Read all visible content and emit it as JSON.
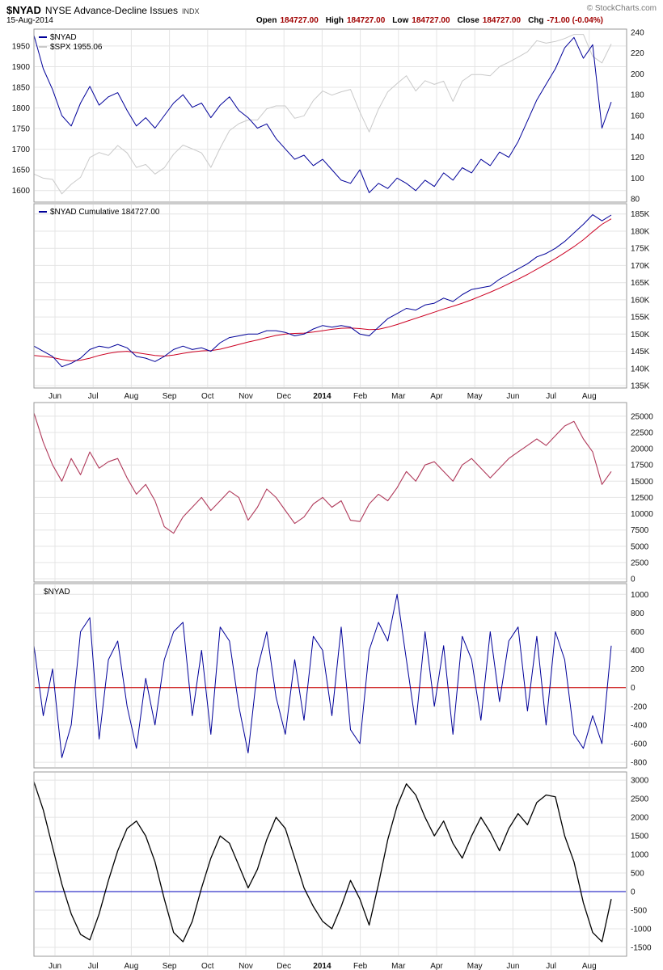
{
  "header": {
    "symbol": "$NYAD",
    "name": "NYSE Advance-Decline Issues",
    "exchange": "INDX",
    "date": "15-Aug-2014",
    "credit": "© StockCharts.com",
    "quote": [
      {
        "label": "Open",
        "value": "184727.00"
      },
      {
        "label": "High",
        "value": "184727.00"
      },
      {
        "label": "Low",
        "value": "184727.00"
      },
      {
        "label": "Close",
        "value": "184727.00"
      },
      {
        "label": "Chg",
        "value": "-71.00 (-0.04%)"
      }
    ]
  },
  "chart_data": {
    "type": "line",
    "title": "$NYAD NYSE Advance-Decline Issues INDX",
    "x_axis": {
      "months": [
        "Jun",
        "Jul",
        "Aug",
        "Sep",
        "Oct",
        "Nov",
        "Dec",
        "2014",
        "Feb",
        "Mar",
        "Apr",
        "May",
        "Jun",
        "Jul",
        "Aug"
      ],
      "start": "Jun-2013",
      "end": "15-Aug-2014",
      "sampling": "weekly"
    },
    "panels": [
      {
        "name": "nyad-spx-overlay",
        "legend": [
          {
            "label": "$NYAD",
            "color": "#000099"
          },
          {
            "label": "$SPX 1955.06",
            "color": "#c9c9c9"
          }
        ],
        "left_axis": {
          "min": 1572,
          "max": 1991,
          "grid": true,
          "ticks": [
            [
              1950,
              "1950"
            ],
            [
              1900,
              "1900"
            ],
            [
              1850,
              "1850"
            ],
            [
              1800,
              "1800"
            ],
            [
              1750,
              "1750"
            ],
            [
              1700,
              "1700"
            ],
            [
              1650,
              "1650"
            ],
            [
              1600,
              "1600"
            ]
          ]
        },
        "right_axis": {
          "min": 77,
          "max": 243,
          "ticks": [
            [
              240,
              "240"
            ],
            [
              220,
              "220"
            ],
            [
              200,
              "200"
            ],
            [
              180,
              "180"
            ],
            [
              160,
              "160"
            ],
            [
              140,
              "140"
            ],
            [
              120,
              "120"
            ],
            [
              100,
              "100"
            ],
            [
              80,
              "80"
            ]
          ]
        },
        "series": [
          {
            "name": "$SPX",
            "axis": "left",
            "color": "#c9c9c9",
            "width": 1,
            "values": [
              1640,
              1630,
              1627,
              1592,
              1615,
              1632,
              1680,
              1692,
              1685,
              1709,
              1691,
              1656,
              1663,
              1640,
              1655,
              1688,
              1710,
              1701,
              1691,
              1656,
              1703,
              1745,
              1762,
              1771,
              1771,
              1798,
              1805,
              1805,
              1775,
              1781,
              1818,
              1841,
              1831,
              1839,
              1845,
              1790,
              1742,
              1797,
              1839,
              1859,
              1878,
              1841,
              1866,
              1857,
              1865,
              1816,
              1865,
              1881,
              1881,
              1878,
              1900,
              1911,
              1923,
              1936,
              1963,
              1957,
              1961,
              1968,
              1978,
              1978,
              1925,
              1909,
              1955
            ]
          },
          {
            "name": "$NYAD",
            "axis": "right",
            "color": "#000099",
            "width": 1,
            "values": [
              237,
              205,
              185,
              160,
              150,
              172,
              188,
              170,
              178,
              182,
              165,
              150,
              158,
              148,
              160,
              172,
              180,
              168,
              172,
              158,
              170,
              178,
              165,
              158,
              148,
              152,
              138,
              128,
              118,
              122,
              112,
              118,
              108,
              98,
              95,
              108,
              86,
              95,
              90,
              100,
              95,
              88,
              98,
              92,
              105,
              98,
              110,
              105,
              118,
              112,
              125,
              120,
              135,
              155,
              175,
              190,
              205,
              225,
              235,
              215,
              228,
              148,
              173
            ]
          }
        ]
      },
      {
        "name": "nyad-cumulative",
        "legend": [
          {
            "label": "$NYAD Cumulative 184727.00",
            "color": "#000099"
          }
        ],
        "left_axis": null,
        "right_axis": {
          "min": 134.3,
          "max": 188,
          "ticks": [
            [
              185,
              "185K"
            ],
            [
              180,
              "180K"
            ],
            [
              175,
              "175K"
            ],
            [
              170,
              "170K"
            ],
            [
              165,
              "165K"
            ],
            [
              160,
              "160K"
            ],
            [
              155,
              "155K"
            ],
            [
              150,
              "150K"
            ],
            [
              145,
              "145K"
            ],
            [
              140,
              "140K"
            ],
            [
              135,
              "135K"
            ]
          ]
        },
        "series": [
          {
            "name": "cumulative-ma",
            "axis": "right",
            "color": "#cc0022",
            "width": 1,
            "values": [
              143.8,
              143.5,
              143.2,
              142.6,
              142.2,
              142.4,
              143,
              143.8,
              144.4,
              144.8,
              145,
              144.6,
              144.2,
              143.8,
              143.6,
              143.9,
              144.4,
              144.8,
              145.1,
              145.2,
              145.6,
              146.3,
              147,
              147.7,
              148.3,
              149,
              149.6,
              150,
              150.2,
              150.3,
              150.6,
              151,
              151.4,
              151.7,
              151.8,
              151.6,
              151.3,
              151.4,
              152,
              152.8,
              153.7,
              154.6,
              155.5,
              156.4,
              157.3,
              158.1,
              159,
              160,
              161.1,
              162.2,
              163.4,
              164.7,
              166,
              167.4,
              168.9,
              170.4,
              172,
              173.7,
              175.5,
              177.5,
              179.8,
              182,
              183.6
            ]
          },
          {
            "name": "cumulative",
            "axis": "right",
            "color": "#000099",
            "width": 1,
            "values": [
              146.5,
              145,
              143.5,
              140.5,
              141.5,
              143,
              145.5,
              146.5,
              146,
              147,
              146,
              143.5,
              143,
              142,
              143.5,
              145.5,
              146.5,
              145.5,
              146,
              145,
              147.5,
              149,
              149.5,
              150,
              150,
              151,
              151,
              150.5,
              149.5,
              150,
              151.5,
              152.5,
              152,
              152.5,
              152,
              150,
              149.5,
              152,
              154.5,
              156,
              157.5,
              157,
              158.5,
              159,
              160.5,
              159.5,
              161.5,
              163,
              163.5,
              164,
              166,
              167.5,
              169,
              170.5,
              172.5,
              173.5,
              175,
              177,
              179.5,
              182,
              184.8,
              183,
              184.7
            ]
          }
        ]
      },
      {
        "name": "breadth",
        "legend": null,
        "left_axis": null,
        "right_axis": {
          "min": -500,
          "max": 27100,
          "ticks": [
            [
              25000,
              "25000"
            ],
            [
              22500,
              "22500"
            ],
            [
              20000,
              "20000"
            ],
            [
              17500,
              "17500"
            ],
            [
              15000,
              "15000"
            ],
            [
              12500,
              "12500"
            ],
            [
              10000,
              "10000"
            ],
            [
              7500,
              "7500"
            ],
            [
              5000,
              "5000"
            ],
            [
              2500,
              "2500"
            ],
            [
              0,
              "0"
            ]
          ]
        },
        "series": [
          {
            "name": "breadth-line",
            "axis": "right",
            "color": "#b03a5b",
            "width": 1.1,
            "values": [
              25500,
              21000,
              17500,
              15000,
              18500,
              16000,
              19500,
              17000,
              18000,
              18500,
              15500,
              13000,
              14500,
              12000,
              8000,
              7000,
              9500,
              11000,
              12500,
              10500,
              12000,
              13500,
              12500,
              9000,
              11000,
              13800,
              12500,
              10500,
              8500,
              9500,
              11500,
              12500,
              11000,
              12000,
              9000,
              8800,
              11500,
              13000,
              12000,
              14000,
              16500,
              15000,
              17500,
              18000,
              16500,
              15000,
              17500,
              18500,
              17000,
              15500,
              17000,
              18500,
              19500,
              20500,
              21500,
              20500,
              22000,
              23500,
              24200,
              21500,
              19500,
              14500,
              16500
            ]
          }
        ]
      },
      {
        "name": "nyad-daily",
        "legend": [
          {
            "label": "$NYAD",
            "color": "#000000",
            "no_dash": true
          }
        ],
        "left_axis": null,
        "zero_line": "#cc0000",
        "right_axis": {
          "min": -860,
          "max": 1115,
          "ticks": [
            [
              1000,
              "1000"
            ],
            [
              800,
              "800"
            ],
            [
              600,
              "600"
            ],
            [
              400,
              "400"
            ],
            [
              200,
              "200"
            ],
            [
              0,
              "0"
            ],
            [
              -200,
              "-200"
            ],
            [
              -400,
              "-400"
            ],
            [
              -600,
              "-600"
            ],
            [
              -800,
              "-800"
            ]
          ]
        },
        "series": [
          {
            "name": "nyad-daily-line",
            "axis": "right",
            "color": "#000099",
            "width": 1,
            "values": [
              450,
              -300,
              200,
              -750,
              -400,
              600,
              750,
              -550,
              300,
              500,
              -200,
              -650,
              100,
              -400,
              300,
              600,
              700,
              -300,
              400,
              -500,
              650,
              500,
              -200,
              -700,
              200,
              600,
              -100,
              -500,
              300,
              -350,
              550,
              400,
              -300,
              650,
              -450,
              -600,
              400,
              700,
              500,
              1000,
              300,
              -400,
              600,
              -200,
              450,
              -500,
              550,
              300,
              -350,
              600,
              -150,
              500,
              650,
              -250,
              550,
              -400,
              600,
              300,
              -500,
              -650,
              -300,
              -600,
              450
            ]
          }
        ]
      },
      {
        "name": "momentum",
        "legend": null,
        "left_axis": null,
        "zero_line": "#0000bb",
        "right_axis": {
          "min": -1740,
          "max": 3220,
          "ticks": [
            [
              3000,
              "3000"
            ],
            [
              2500,
              "2500"
            ],
            [
              2000,
              "2000"
            ],
            [
              1500,
              "1500"
            ],
            [
              1000,
              "1000"
            ],
            [
              500,
              "500"
            ],
            [
              0,
              "0"
            ],
            [
              -500,
              "-500"
            ],
            [
              -1000,
              "-1000"
            ],
            [
              -1500,
              "-1500"
            ]
          ]
        },
        "series": [
          {
            "name": "momentum-line",
            "axis": "right",
            "color": "#000000",
            "width": 1.3,
            "values": [
              2950,
              2200,
              1200,
              200,
              -600,
              -1150,
              -1300,
              -600,
              300,
              1100,
              1700,
              1900,
              1500,
              800,
              -200,
              -1100,
              -1350,
              -800,
              100,
              900,
              1500,
              1300,
              700,
              100,
              600,
              1400,
              2000,
              1700,
              900,
              100,
              -400,
              -800,
              -1000,
              -400,
              300,
              -200,
              -900,
              200,
              1400,
              2300,
              2900,
              2600,
              2000,
              1500,
              1900,
              1300,
              900,
              1500,
              2000,
              1600,
              1100,
              1700,
              2100,
              1800,
              2400,
              2600,
              2550,
              1500,
              800,
              -300,
              -1100,
              -1350,
              -200
            ]
          }
        ]
      }
    ]
  }
}
